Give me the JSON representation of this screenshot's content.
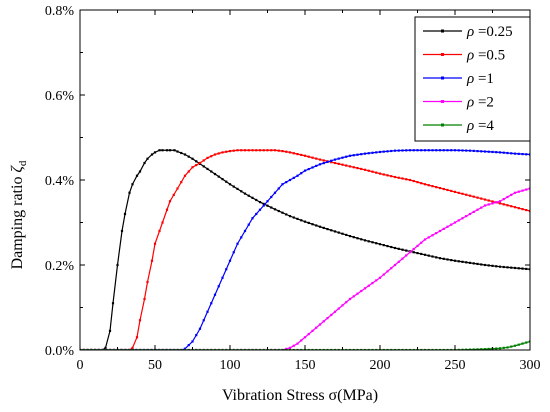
{
  "chart_data": {
    "type": "line",
    "xlabel": "Vibration Stress σ(MPa)",
    "ylabel_text": "Damping ratio ",
    "ylabel_symbol": "ζ",
    "ylabel_sub": "d",
    "xlim": [
      0,
      300
    ],
    "ylim": [
      0,
      0.008
    ],
    "x_ticks": [
      0,
      50,
      100,
      150,
      200,
      250,
      300
    ],
    "y_ticks": [
      0,
      0.002,
      0.004,
      0.006,
      0.008
    ],
    "x_tick_labels": [
      "0",
      "50",
      "100",
      "150",
      "200",
      "250",
      "300"
    ],
    "y_tick_labels": [
      "0.0%",
      "0.2%",
      "0.4%",
      "0.6%",
      "0.8%"
    ],
    "legend_position": "top-right",
    "grid": false,
    "series": [
      {
        "name": "ρ =0.25",
        "legend_symbol": "ρ",
        "legend_value": " =0.25",
        "color": "#000000",
        "x": [
          0,
          15,
          17,
          20,
          22,
          25,
          28,
          30,
          33,
          35,
          38,
          40,
          43,
          45,
          48,
          50,
          53,
          55,
          58,
          60,
          63,
          65,
          70,
          75,
          80,
          90,
          100,
          110,
          120,
          130,
          140,
          150,
          160,
          170,
          180,
          190,
          200,
          210,
          220,
          230,
          240,
          250,
          260,
          270,
          280,
          290,
          300
        ],
        "y": [
          0,
          0,
          5e-05,
          0.00045,
          0.0011,
          0.002,
          0.0028,
          0.0032,
          0.0037,
          0.0039,
          0.0041,
          0.0042,
          0.0044,
          0.0045,
          0.0046,
          0.00465,
          0.0047,
          0.0047,
          0.0047,
          0.0047,
          0.0047,
          0.00467,
          0.0046,
          0.0045,
          0.00438,
          0.00414,
          0.0039,
          0.00368,
          0.00348,
          0.00331,
          0.00315,
          0.00302,
          0.0029,
          0.00279,
          0.00268,
          0.00258,
          0.00249,
          0.0024,
          0.00232,
          0.00224,
          0.00216,
          0.0021,
          0.00205,
          0.002,
          0.00196,
          0.00193,
          0.0019
        ]
      },
      {
        "name": "ρ =0.5",
        "legend_symbol": "ρ",
        "legend_value": " =0.5",
        "color": "#ff0000",
        "x": [
          0,
          33,
          35,
          38,
          40,
          43,
          45,
          48,
          50,
          53,
          55,
          58,
          60,
          65,
          70,
          75,
          80,
          85,
          90,
          95,
          100,
          105,
          110,
          115,
          120,
          125,
          130,
          135,
          140,
          150,
          160,
          170,
          180,
          190,
          200,
          210,
          220,
          230,
          240,
          250,
          260,
          270,
          280,
          290,
          300
        ],
        "y": [
          0,
          0,
          5e-05,
          0.0003,
          0.0007,
          0.0012,
          0.0016,
          0.0021,
          0.0025,
          0.0028,
          0.003,
          0.0033,
          0.0035,
          0.0038,
          0.0041,
          0.0043,
          0.0044,
          0.00452,
          0.0046,
          0.00465,
          0.00468,
          0.0047,
          0.0047,
          0.0047,
          0.0047,
          0.0047,
          0.0047,
          0.00468,
          0.00465,
          0.00457,
          0.00448,
          0.0044,
          0.00432,
          0.00424,
          0.00415,
          0.00407,
          0.004,
          0.0039,
          0.00381,
          0.00372,
          0.00363,
          0.00354,
          0.00345,
          0.00336,
          0.00327
        ]
      },
      {
        "name": "ρ =1",
        "legend_symbol": "ρ",
        "legend_value": " =1",
        "color": "#0000ff",
        "x": [
          0,
          68,
          70,
          75,
          80,
          85,
          90,
          95,
          100,
          105,
          110,
          115,
          120,
          125,
          130,
          135,
          140,
          145,
          150,
          160,
          170,
          180,
          190,
          200,
          210,
          220,
          230,
          240,
          250,
          260,
          270,
          280,
          290,
          300
        ],
        "y": [
          0,
          0,
          3e-05,
          0.0002,
          0.0005,
          0.0009,
          0.0013,
          0.0017,
          0.0021,
          0.0025,
          0.0028,
          0.0031,
          0.0033,
          0.0035,
          0.0037,
          0.0039,
          0.004,
          0.0041,
          0.00422,
          0.00437,
          0.00448,
          0.00457,
          0.00462,
          0.00466,
          0.00469,
          0.0047,
          0.0047,
          0.0047,
          0.0047,
          0.00469,
          0.00467,
          0.00465,
          0.00462,
          0.0046
        ]
      },
      {
        "name": "ρ =2",
        "legend_symbol": "ρ",
        "legend_value": " =2",
        "color": "#ff00ff",
        "x": [
          0,
          135,
          140,
          145,
          150,
          160,
          170,
          180,
          190,
          200,
          210,
          220,
          230,
          240,
          250,
          260,
          270,
          280,
          290,
          300
        ],
        "y": [
          0,
          0,
          5e-05,
          0.00015,
          0.0003,
          0.0006,
          0.0009,
          0.0012,
          0.00145,
          0.0017,
          0.002,
          0.0023,
          0.0026,
          0.0028,
          0.003,
          0.0032,
          0.0034,
          0.0035,
          0.0037,
          0.0038
        ]
      },
      {
        "name": "ρ =4",
        "legend_symbol": "ρ",
        "legend_value": " =4",
        "color": "#008000",
        "x": [
          0,
          250,
          260,
          270,
          280,
          285,
          290,
          295,
          300
        ],
        "y": [
          0,
          0,
          1e-05,
          2e-05,
          4e-05,
          6e-05,
          0.0001,
          0.00015,
          0.0002
        ]
      }
    ]
  }
}
